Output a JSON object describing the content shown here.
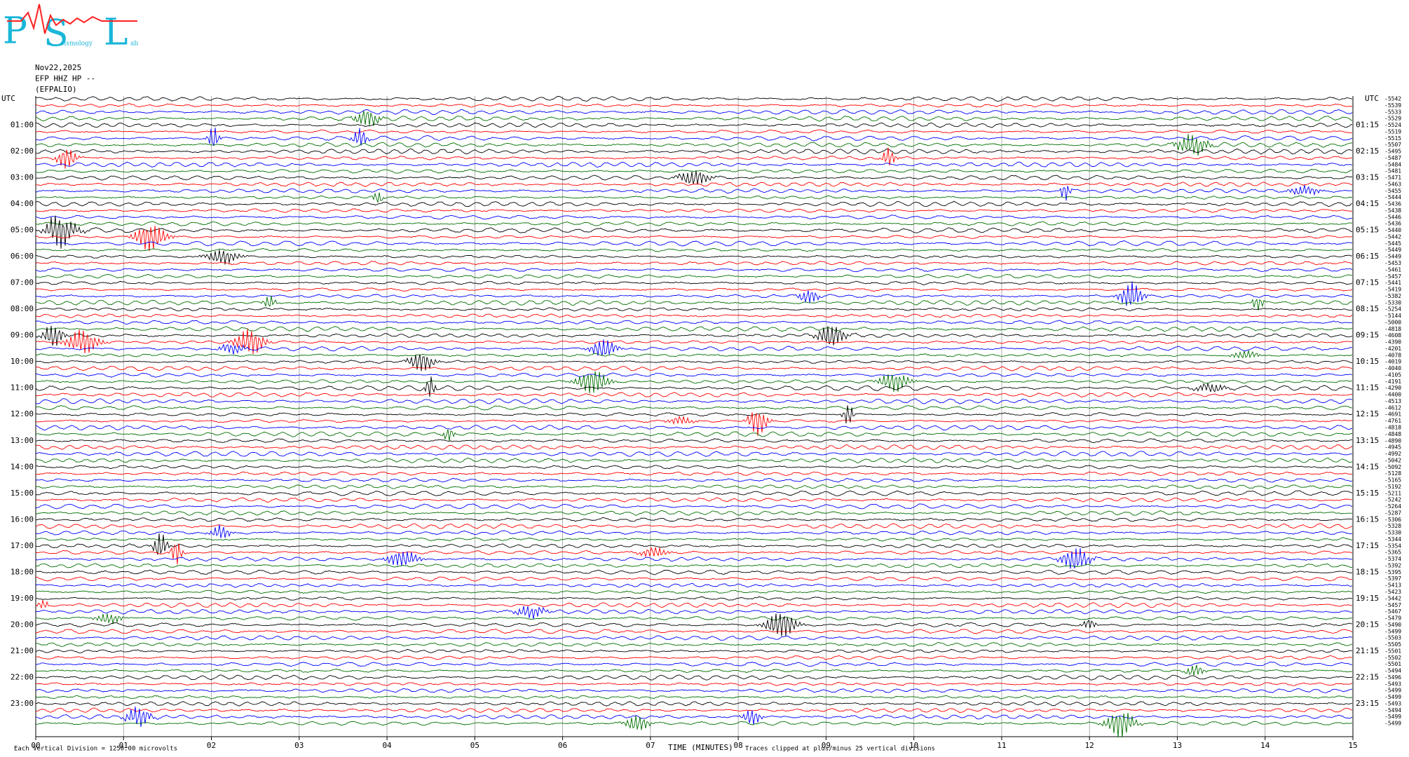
{
  "chart_data": {
    "type": "helicorder",
    "logo": {
      "letters": [
        "P",
        "S",
        "L"
      ],
      "words": [
        "eismology",
        "ab"
      ]
    },
    "header": [
      "Nov22,2025",
      "EFP HHZ HP --",
      "(EFPALIO)"
    ],
    "left_label": "UTC",
    "right_label": "UTC",
    "left_hours": [
      "01:00",
      "02:00",
      "03:00",
      "04:00",
      "05:00",
      "06:00",
      "07:00",
      "08:00",
      "09:00",
      "10:00",
      "11:00",
      "12:00",
      "13:00",
      "14:00",
      "15:00",
      "16:00",
      "17:00",
      "18:00",
      "19:00",
      "20:00",
      "21:00",
      "22:00",
      "23:00"
    ],
    "right_hours": [
      "01:15",
      "02:15",
      "03:15",
      "04:15",
      "05:15",
      "06:15",
      "07:15",
      "08:15",
      "09:15",
      "10:15",
      "11:15",
      "12:15",
      "13:15",
      "14:15",
      "15:15",
      "16:15",
      "17:15",
      "18:15",
      "19:15",
      "20:15",
      "21:15",
      "22:15",
      "23:15"
    ],
    "row_offsets": [
      -5542,
      -5539,
      -5533,
      -5529,
      -5524,
      -5519,
      -5515,
      -5507,
      -5495,
      -5487,
      -5484,
      -5481,
      -5471,
      -5463,
      -5455,
      -5444,
      -5436,
      -5438,
      -5446,
      -5436,
      -5440,
      -5442,
      -5445,
      -5449,
      -5449,
      -5453,
      -5461,
      -5457,
      -5441,
      -5419,
      -5382,
      -5330,
      -5254,
      -5144,
      -5000,
      -4818,
      -4608,
      -4390,
      -4201,
      -4078,
      -4019,
      -4040,
      -4105,
      -4191,
      -4290,
      -4400,
      -4513,
      -4612,
      -4691,
      -4761,
      -4818,
      -4848,
      -4890,
      -4945,
      -4992,
      -5042,
      -5092,
      -5128,
      -5165,
      -5192,
      -5211,
      -5242,
      -5264,
      -5287,
      -5306,
      -5328,
      -5330,
      -5344,
      -5354,
      -5365,
      -5374,
      -5392,
      -5395,
      -5397,
      -5413,
      -5423,
      -5442,
      -5457,
      -5467,
      -5479,
      -5490,
      -5499,
      -5503,
      -5505,
      -5501,
      -5502,
      -5501,
      -5494,
      -5496,
      -5493,
      -5499,
      -5499,
      -5493,
      -5494,
      -5499,
      -5499
    ],
    "xlim": [
      0,
      15
    ],
    "xticks": [
      {
        "value": 0,
        "label": "00"
      },
      {
        "value": 1,
        "label": "01"
      },
      {
        "value": 2,
        "label": "02"
      },
      {
        "value": 3,
        "label": "03"
      },
      {
        "value": 4,
        "label": "04"
      },
      {
        "value": 5,
        "label": "05"
      },
      {
        "value": 6,
        "label": "06"
      },
      {
        "value": 7,
        "label": "07"
      },
      {
        "value": 8,
        "label": "08"
      },
      {
        "value": 9,
        "label": "09"
      },
      {
        "value": 10,
        "label": "10"
      },
      {
        "value": 11,
        "label": "11"
      },
      {
        "value": 12,
        "label": "12"
      },
      {
        "value": 13,
        "label": "13"
      },
      {
        "value": 14,
        "label": "14"
      },
      {
        "value": 15,
        "label": "15"
      }
    ],
    "xlabel": "TIME (MINUTES)",
    "scale_note": "Each Vertical Division = 1250.00 microvolts",
    "clip_note": "Traces clipped at plus/minus 25 vertical divisions",
    "trace_colors": [
      "#000000",
      "#ff0000",
      "#0000ff",
      "#007000"
    ],
    "grid": true
  }
}
